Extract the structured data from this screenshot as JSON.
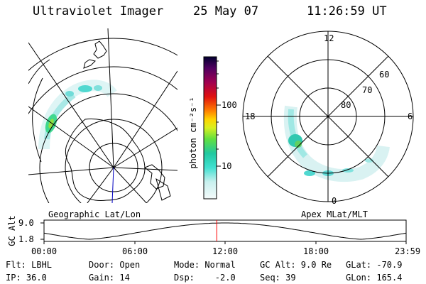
{
  "header": {
    "instrument": "Ultraviolet Imager",
    "date": "25 May 07",
    "time": "11:26:59 UT"
  },
  "left_panel": {
    "label": "Geographic Lat/Lon"
  },
  "right_panel": {
    "label": "Apex MLat/MLT",
    "mlt_labels": [
      "12",
      "18",
      "6",
      "0"
    ],
    "lat_labels": [
      "60",
      "70",
      "80"
    ]
  },
  "colorbar": {
    "unit": "photon cm⁻²s⁻¹",
    "ticks": [
      "100",
      "10"
    ]
  },
  "timeline": {
    "ylabel": "GC Alt",
    "yticks": [
      "9.0",
      "1.8"
    ],
    "xticks": [
      "00:00",
      "06:00",
      "12:00",
      "18:00",
      "23:59"
    ],
    "marker_time_hours": 11.45
  },
  "info": {
    "flt": "Flt: LBHL",
    "door": "Door: Open",
    "mode": "Mode: Normal",
    "gcalt": "GC Alt: 9.0 Re",
    "glat": "GLat: -70.9",
    "ip": "IP: 36.0",
    "gain": "Gain: 14",
    "dsp": "Dsp:    -2.0",
    "seq": "Seq: 39",
    "glon": "GLon: 165.4"
  }
}
